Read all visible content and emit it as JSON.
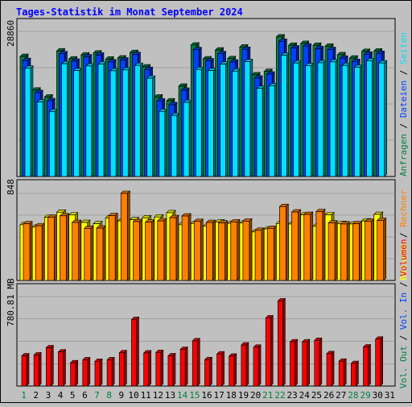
{
  "title": "Tages-Statistik im Monat September 2024",
  "colors": {
    "background": "#c0c0c0",
    "plot_bg": "#c0c0c0",
    "title": "#0000ff",
    "hits": "#008040",
    "files": "#0040ff",
    "pages": "#00e0ff",
    "visits": "#ffff00",
    "sites": "#ff8000",
    "kbytes": "#ff0000",
    "weekday_label": "#000000",
    "weekend_label": "#008040"
  },
  "legend_right": {
    "top_panel": [
      {
        "text": "Anfragen",
        "color": "#008040"
      },
      {
        "text": "Dateien",
        "color": "#0040ff"
      },
      {
        "text": "Seiten",
        "color": "#00e0ff"
      }
    ],
    "middle_panel": [
      {
        "text": "Besuche",
        "color": "#ffff00"
      },
      {
        "text": "Rechner",
        "color": "#ff8000"
      }
    ],
    "bottom_panel": [
      {
        "text": "Vol. Out",
        "color": "#008040"
      },
      {
        "text": "Vol. In",
        "color": "#0040ff"
      },
      {
        "text": "Volumen",
        "color": "#ff0000"
      }
    ]
  },
  "y_labels": {
    "top": "28860",
    "middle": "848",
    "bottom": "780.81 MB"
  },
  "chart_data": {
    "type": "bar",
    "days": [
      "1",
      "2",
      "3",
      "4",
      "5",
      "6",
      "7",
      "8",
      "9",
      "10",
      "11",
      "12",
      "13",
      "14",
      "15",
      "16",
      "17",
      "18",
      "19",
      "20",
      "21",
      "22",
      "23",
      "24",
      "25",
      "26",
      "27",
      "28",
      "29",
      "30",
      "31"
    ],
    "weekend_days": [
      "1",
      "7",
      "8",
      "14",
      "15",
      "21",
      "22",
      "28",
      "29"
    ],
    "panels": [
      {
        "name": "requests",
        "ylim": [
          0,
          28860
        ],
        "series": [
          {
            "name": "Anfragen",
            "values": [
              23880,
              17190,
              15810,
              24980,
              23380,
              24190,
              24560,
              23360,
              23590,
              24660,
              21800,
              15810,
              15050,
              17960,
              26150,
              23410,
              25160,
              23450,
              25760,
              20230,
              20890,
              27760,
              26110,
              26470,
              26100,
              25920,
              24220,
              23560,
              24890,
              24970,
              null
            ]
          },
          {
            "name": "Dateien",
            "values": [
              23050,
              16680,
              15070,
              24410,
              22920,
              23780,
              24150,
              22790,
              23160,
              24250,
              21280,
              15030,
              14280,
              17140,
              25230,
              22990,
              24420,
              22760,
              25290,
              19570,
              20360,
              26890,
              25560,
              25940,
              25420,
              25240,
              23520,
              22860,
              24320,
              24480,
              null
            ]
          },
          {
            "name": "Seiten",
            "values": [
              21530,
              14820,
              12920,
              22430,
              21070,
              21980,
              22370,
              21020,
              21190,
              22100,
              19540,
              12940,
              12160,
              14730,
              21280,
              21070,
              22360,
              20960,
              22830,
              17530,
              18050,
              24120,
              22570,
              22060,
              22620,
              22790,
              22090,
              21720,
              23020,
              22580,
              null
            ]
          }
        ]
      },
      {
        "name": "visits",
        "ylim": [
          0,
          848
        ],
        "series": [
          {
            "name": "Besuche",
            "values": [
              543,
              520,
              615,
              665,
              638,
              565,
              553,
              610,
              580,
              592,
              610,
              618,
              660,
              543,
              555,
              528,
              570,
              557,
              560,
              473,
              502,
              555,
              550,
              640,
              528,
              640,
              555,
              550,
              580,
              643,
              null
            ]
          },
          {
            "name": "Rechner",
            "values": [
              552,
              533,
              615,
              630,
              565,
              508,
              510,
              632,
              848,
              573,
              568,
              580,
              612,
              628,
              575,
              565,
              560,
              570,
              578,
              488,
              508,
              720,
              667,
              643,
              670,
              560,
              550,
              553,
              575,
              585,
              null
            ]
          }
        ]
      },
      {
        "name": "volume",
        "ylim": [
          0,
          780.81
        ],
        "series": [
          {
            "name": "Volumen",
            "values": [
              263,
              271,
              334,
              298,
              203,
              229,
              216,
              229,
              291,
              581,
              289,
              293,
              264,
              320,
              395,
              230,
              280,
              261,
              358,
              339,
              595,
              743,
              386,
              386,
              399,
              283,
              217,
              197,
              341,
              409,
              null
            ]
          }
        ]
      }
    ]
  }
}
